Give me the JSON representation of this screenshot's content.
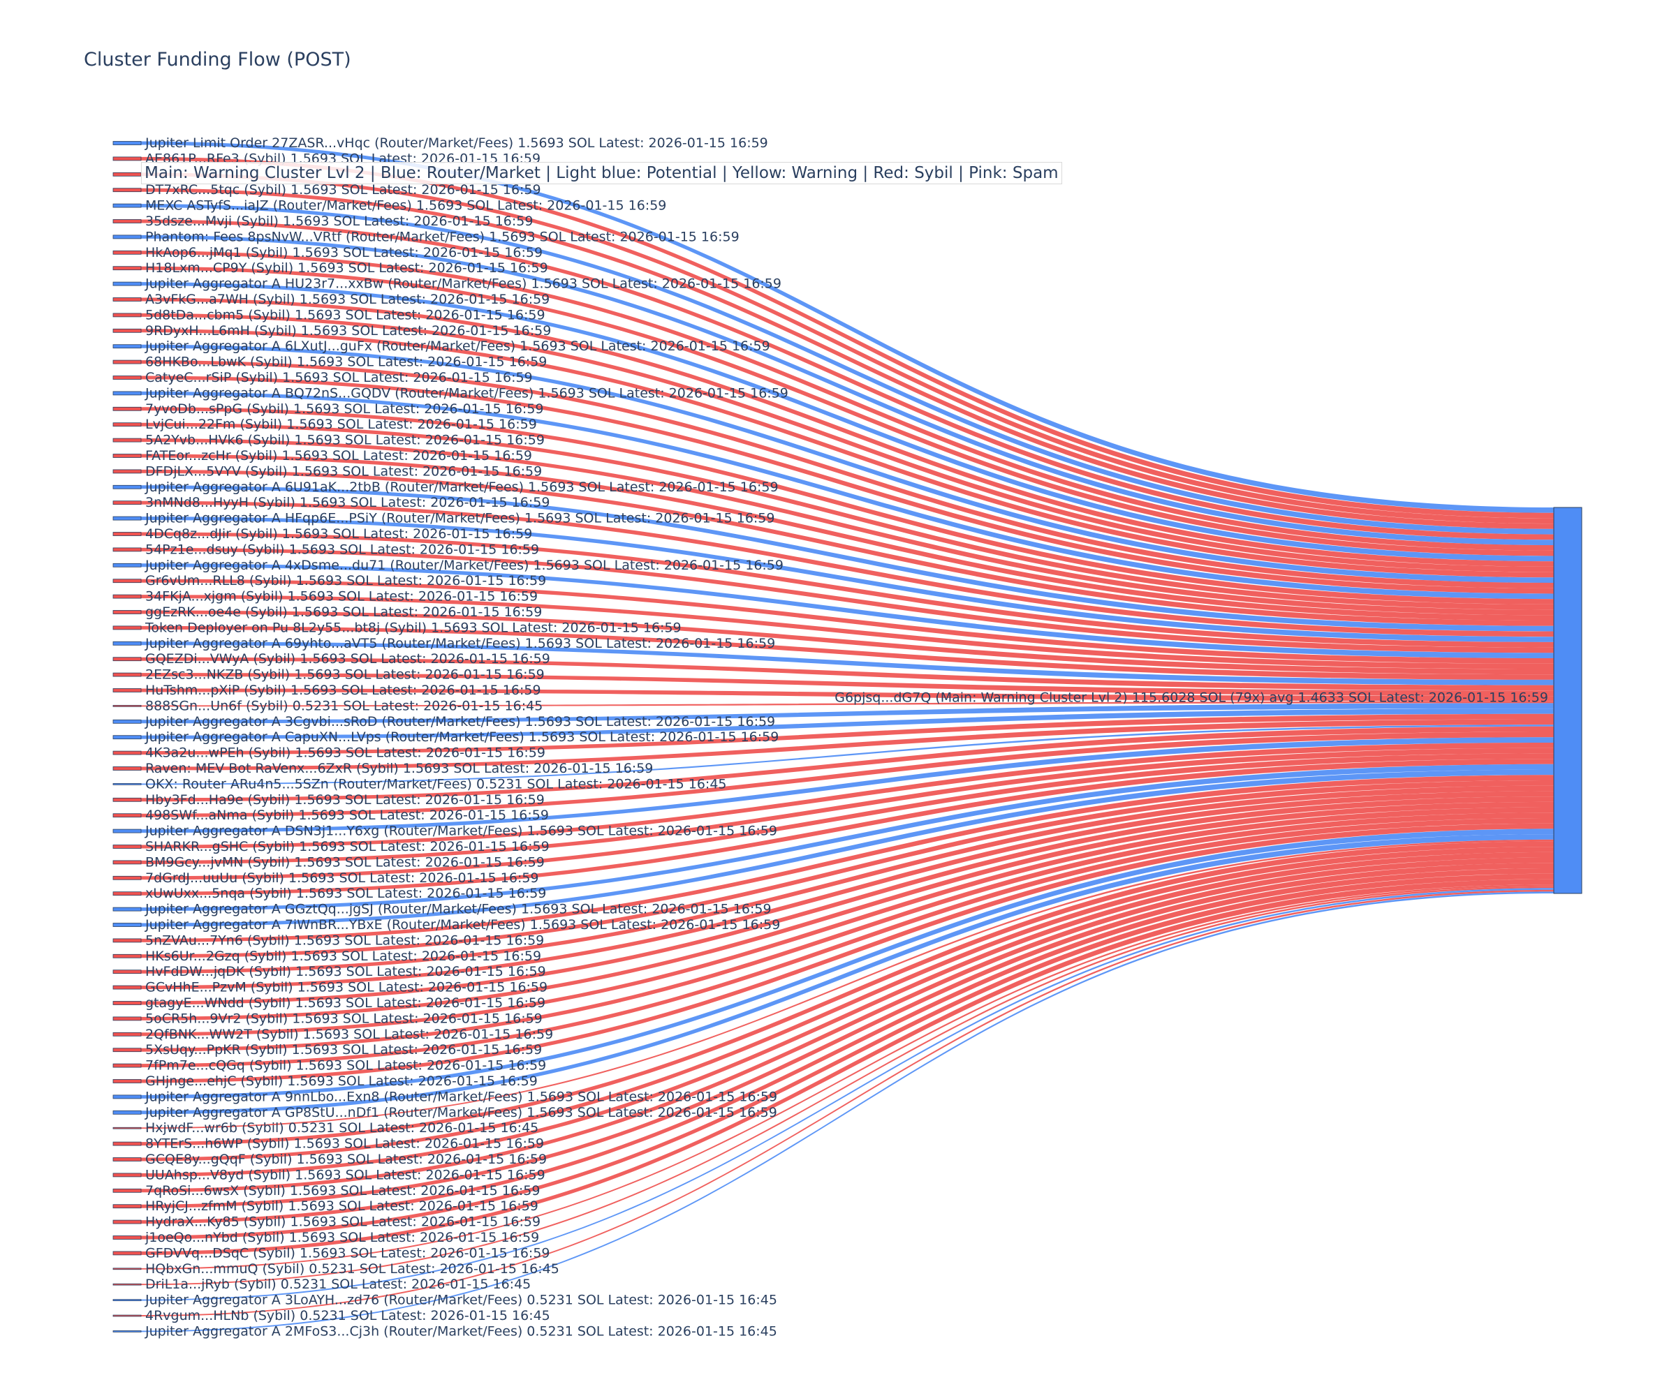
{
  "chart_data": {
    "type": "sankey",
    "title": "Cluster Funding Flow (POST)",
    "legend": "Main: Warning Cluster Lvl 2  |  Blue: Router/Market | Light blue: Potential | Yellow: Warning | Red: Sybil | Pink: Spam",
    "colors": {
      "router": "#4f8df5",
      "sybil": "#ef5350",
      "target": "#4f8df5"
    },
    "target": {
      "label": "G6pjsq...dG7Q (Main: Warning Cluster Lvl 2) 115.6028 SOL (79x) avg 1.4633 SOL Latest: 2026-01-15 16:59",
      "value": 115.6028
    },
    "sources": [
      {
        "label": "Jupiter Limit Order  27ZASR...vHqc (Router/Market/Fees) 1.5693 SOL Latest: 2026-01-15 16:59",
        "value": 1.5693,
        "kind": "router"
      },
      {
        "label": "AE861P...RFe3 (Sybil) 1.5693 SOL Latest: 2026-01-15 16:59",
        "value": 1.5693,
        "kind": "sybil"
      },
      {
        "label": "",
        "value": 1.5693,
        "kind": "sybil"
      },
      {
        "label": "DT7xRC...5tqc (Sybil) 1.5693 SOL Latest: 2026-01-15 16:59",
        "value": 1.5693,
        "kind": "sybil"
      },
      {
        "label": "MEXC ASTyfS...iaJZ (Router/Market/Fees) 1.5693 SOL Latest: 2026-01-15 16:59",
        "value": 1.5693,
        "kind": "router"
      },
      {
        "label": "35dsze...Mvji (Sybil) 1.5693 SOL Latest: 2026-01-15 16:59",
        "value": 1.5693,
        "kind": "sybil"
      },
      {
        "label": "Phantom: Fees 8psNvW...VRtf (Router/Market/Fees) 1.5693 SOL Latest: 2026-01-15 16:59",
        "value": 1.5693,
        "kind": "router"
      },
      {
        "label": "HkAop6...jMq1 (Sybil) 1.5693 SOL Latest: 2026-01-15 16:59",
        "value": 1.5693,
        "kind": "sybil"
      },
      {
        "label": "H18Lxm...CP9Y (Sybil) 1.5693 SOL Latest: 2026-01-15 16:59",
        "value": 1.5693,
        "kind": "sybil"
      },
      {
        "label": "Jupiter Aggregator A HU23r7...xxBw (Router/Market/Fees) 1.5693 SOL Latest: 2026-01-15 16:59",
        "value": 1.5693,
        "kind": "router"
      },
      {
        "label": "A3vFkG...a7WH (Sybil) 1.5693 SOL Latest: 2026-01-15 16:59",
        "value": 1.5693,
        "kind": "sybil"
      },
      {
        "label": "5d8tDa...cbm5 (Sybil) 1.5693 SOL Latest: 2026-01-15 16:59",
        "value": 1.5693,
        "kind": "sybil"
      },
      {
        "label": "9RDyxH...L6mH (Sybil) 1.5693 SOL Latest: 2026-01-15 16:59",
        "value": 1.5693,
        "kind": "sybil"
      },
      {
        "label": "Jupiter Aggregator A 6LXutJ...guFx (Router/Market/Fees) 1.5693 SOL Latest: 2026-01-15 16:59",
        "value": 1.5693,
        "kind": "router"
      },
      {
        "label": "68HKBo...LbwK (Sybil) 1.5693 SOL Latest: 2026-01-15 16:59",
        "value": 1.5693,
        "kind": "sybil"
      },
      {
        "label": "CatyeC...rSiP (Sybil) 1.5693 SOL Latest: 2026-01-15 16:59",
        "value": 1.5693,
        "kind": "sybil"
      },
      {
        "label": "Jupiter Aggregator A BQ72nS...GQDV (Router/Market/Fees) 1.5693 SOL Latest: 2026-01-15 16:59",
        "value": 1.5693,
        "kind": "router"
      },
      {
        "label": "7yvoDb...sPpG (Sybil) 1.5693 SOL Latest: 2026-01-15 16:59",
        "value": 1.5693,
        "kind": "sybil"
      },
      {
        "label": "LvjCui...22Fm (Sybil) 1.5693 SOL Latest: 2026-01-15 16:59",
        "value": 1.5693,
        "kind": "sybil"
      },
      {
        "label": "5A2Yvb...HVk6 (Sybil) 1.5693 SOL Latest: 2026-01-15 16:59",
        "value": 1.5693,
        "kind": "sybil"
      },
      {
        "label": "FATEor...zcHr (Sybil) 1.5693 SOL Latest: 2026-01-15 16:59",
        "value": 1.5693,
        "kind": "sybil"
      },
      {
        "label": "DFDjLX...5VYV (Sybil) 1.5693 SOL Latest: 2026-01-15 16:59",
        "value": 1.5693,
        "kind": "sybil"
      },
      {
        "label": "Jupiter Aggregator A 6U91aK...2tbB (Router/Market/Fees) 1.5693 SOL Latest: 2026-01-15 16:59",
        "value": 1.5693,
        "kind": "router"
      },
      {
        "label": "3nMNd8...HyyH (Sybil) 1.5693 SOL Latest: 2026-01-15 16:59",
        "value": 1.5693,
        "kind": "sybil"
      },
      {
        "label": "Jupiter Aggregator A HFqp6E...PSiY (Router/Market/Fees) 1.5693 SOL Latest: 2026-01-15 16:59",
        "value": 1.5693,
        "kind": "router"
      },
      {
        "label": "4DCq8z...dJir (Sybil) 1.5693 SOL Latest: 2026-01-15 16:59",
        "value": 1.5693,
        "kind": "sybil"
      },
      {
        "label": "54Pz1e...dsuy (Sybil) 1.5693 SOL Latest: 2026-01-15 16:59",
        "value": 1.5693,
        "kind": "sybil"
      },
      {
        "label": "Jupiter Aggregator A 4xDsme...du71 (Router/Market/Fees) 1.5693 SOL Latest: 2026-01-15 16:59",
        "value": 1.5693,
        "kind": "router"
      },
      {
        "label": "Gr6vUm...RLL8 (Sybil) 1.5693 SOL Latest: 2026-01-15 16:59",
        "value": 1.5693,
        "kind": "sybil"
      },
      {
        "label": "34FKjA...xjgm (Sybil) 1.5693 SOL Latest: 2026-01-15 16:59",
        "value": 1.5693,
        "kind": "sybil"
      },
      {
        "label": "ggEzRK...oe4e (Sybil) 1.5693 SOL Latest: 2026-01-15 16:59",
        "value": 1.5693,
        "kind": "sybil"
      },
      {
        "label": "Token Deployer on Pu 8L2y55...bt8j (Sybil) 1.5693 SOL Latest: 2026-01-15 16:59",
        "value": 1.5693,
        "kind": "sybil"
      },
      {
        "label": "Jupiter Aggregator A 69yhto...aVT5 (Router/Market/Fees) 1.5693 SOL Latest: 2026-01-15 16:59",
        "value": 1.5693,
        "kind": "router"
      },
      {
        "label": "GQEZDi...VWyA (Sybil) 1.5693 SOL Latest: 2026-01-15 16:59",
        "value": 1.5693,
        "kind": "sybil"
      },
      {
        "label": "2EZsc3...NKZB (Sybil) 1.5693 SOL Latest: 2026-01-15 16:59",
        "value": 1.5693,
        "kind": "sybil"
      },
      {
        "label": "HuTshm...pXiP (Sybil) 1.5693 SOL Latest: 2026-01-15 16:59",
        "value": 1.5693,
        "kind": "sybil"
      },
      {
        "label": "888SGn...Un6f (Sybil) 0.5231 SOL Latest: 2026-01-15 16:45",
        "value": 0.5231,
        "kind": "sybil"
      },
      {
        "label": "Jupiter Aggregator A 3Cgvbi...sRoD (Router/Market/Fees) 1.5693 SOL Latest: 2026-01-15 16:59",
        "value": 1.5693,
        "kind": "router"
      },
      {
        "label": "Jupiter Aggregator A CapuXN...LVps (Router/Market/Fees) 1.5693 SOL Latest: 2026-01-15 16:59",
        "value": 1.5693,
        "kind": "router"
      },
      {
        "label": "4K3a2u...wPEh (Sybil) 1.5693 SOL Latest: 2026-01-15 16:59",
        "value": 1.5693,
        "kind": "sybil"
      },
      {
        "label": "Raven: MEV Bot RaVenx...6ZxR (Sybil) 1.5693 SOL Latest: 2026-01-15 16:59",
        "value": 1.5693,
        "kind": "sybil"
      },
      {
        "label": "OKX: Router ARu4n5...5SZn (Router/Market/Fees) 0.5231 SOL Latest: 2026-01-15 16:45",
        "value": 0.5231,
        "kind": "router"
      },
      {
        "label": "Hby3Fd...Ha9e (Sybil) 1.5693 SOL Latest: 2026-01-15 16:59",
        "value": 1.5693,
        "kind": "sybil"
      },
      {
        "label": "498SWf...aNma (Sybil) 1.5693 SOL Latest: 2026-01-15 16:59",
        "value": 1.5693,
        "kind": "sybil"
      },
      {
        "label": "Jupiter Aggregator A DSN3j1...Y6xg (Router/Market/Fees) 1.5693 SOL Latest: 2026-01-15 16:59",
        "value": 1.5693,
        "kind": "router"
      },
      {
        "label": "SHARKR...gSHC (Sybil) 1.5693 SOL Latest: 2026-01-15 16:59",
        "value": 1.5693,
        "kind": "sybil"
      },
      {
        "label": "BM9Gcy...jvMN (Sybil) 1.5693 SOL Latest: 2026-01-15 16:59",
        "value": 1.5693,
        "kind": "sybil"
      },
      {
        "label": "7dGrdJ...uuUu (Sybil) 1.5693 SOL Latest: 2026-01-15 16:59",
        "value": 1.5693,
        "kind": "sybil"
      },
      {
        "label": "xUwUxx...5nqa (Sybil) 1.5693 SOL Latest: 2026-01-15 16:59",
        "value": 1.5693,
        "kind": "sybil"
      },
      {
        "label": "Jupiter Aggregator A GGztQq...jgSJ (Router/Market/Fees) 1.5693 SOL Latest: 2026-01-15 16:59",
        "value": 1.5693,
        "kind": "router"
      },
      {
        "label": "Jupiter Aggregator A 7iWnBR...YBxE (Router/Market/Fees) 1.5693 SOL Latest: 2026-01-15 16:59",
        "value": 1.5693,
        "kind": "router"
      },
      {
        "label": "5nZVAu...7Yn6 (Sybil) 1.5693 SOL Latest: 2026-01-15 16:59",
        "value": 1.5693,
        "kind": "sybil"
      },
      {
        "label": "HKs6Ur...2Gzq (Sybil) 1.5693 SOL Latest: 2026-01-15 16:59",
        "value": 1.5693,
        "kind": "sybil"
      },
      {
        "label": "HvFdDW...jqDK (Sybil) 1.5693 SOL Latest: 2026-01-15 16:59",
        "value": 1.5693,
        "kind": "sybil"
      },
      {
        "label": "GCvHhE...PzvM (Sybil) 1.5693 SOL Latest: 2026-01-15 16:59",
        "value": 1.5693,
        "kind": "sybil"
      },
      {
        "label": "gtagyE...WNdd (Sybil) 1.5693 SOL Latest: 2026-01-15 16:59",
        "value": 1.5693,
        "kind": "sybil"
      },
      {
        "label": "5oCR5h...9Vr2 (Sybil) 1.5693 SOL Latest: 2026-01-15 16:59",
        "value": 1.5693,
        "kind": "sybil"
      },
      {
        "label": "2QfBNK...WW2T (Sybil) 1.5693 SOL Latest: 2026-01-15 16:59",
        "value": 1.5693,
        "kind": "sybil"
      },
      {
        "label": "5XsUqy...PpKR (Sybil) 1.5693 SOL Latest: 2026-01-15 16:59",
        "value": 1.5693,
        "kind": "sybil"
      },
      {
        "label": "7fPm7e...cQGq (Sybil) 1.5693 SOL Latest: 2026-01-15 16:59",
        "value": 1.5693,
        "kind": "sybil"
      },
      {
        "label": "GHjnge...ehjC (Sybil) 1.5693 SOL Latest: 2026-01-15 16:59",
        "value": 1.5693,
        "kind": "sybil"
      },
      {
        "label": "Jupiter Aggregator A 9nnLbo...Exn8 (Router/Market/Fees) 1.5693 SOL Latest: 2026-01-15 16:59",
        "value": 1.5693,
        "kind": "router"
      },
      {
        "label": "Jupiter Aggregator A GP8StU...nDf1 (Router/Market/Fees) 1.5693 SOL Latest: 2026-01-15 16:59",
        "value": 1.5693,
        "kind": "router"
      },
      {
        "label": "HxjwdF...wr6b (Sybil) 0.5231 SOL Latest: 2026-01-15 16:45",
        "value": 0.5231,
        "kind": "sybil"
      },
      {
        "label": "8YTErS...h6WP (Sybil) 1.5693 SOL Latest: 2026-01-15 16:59",
        "value": 1.5693,
        "kind": "sybil"
      },
      {
        "label": "GCQE8y...gQqF (Sybil) 1.5693 SOL Latest: 2026-01-15 16:59",
        "value": 1.5693,
        "kind": "sybil"
      },
      {
        "label": "UUAhsp...V8yd (Sybil) 1.5693 SOL Latest: 2026-01-15 16:59",
        "value": 1.5693,
        "kind": "sybil"
      },
      {
        "label": "7qRoSi...6wsX (Sybil) 1.5693 SOL Latest: 2026-01-15 16:59",
        "value": 1.5693,
        "kind": "sybil"
      },
      {
        "label": "HRyjCJ...zfmM (Sybil) 1.5693 SOL Latest: 2026-01-15 16:59",
        "value": 1.5693,
        "kind": "sybil"
      },
      {
        "label": "HydraX...Ky85 (Sybil) 1.5693 SOL Latest: 2026-01-15 16:59",
        "value": 1.5693,
        "kind": "sybil"
      },
      {
        "label": "j1oeQo...nYbd (Sybil) 1.5693 SOL Latest: 2026-01-15 16:59",
        "value": 1.5693,
        "kind": "sybil"
      },
      {
        "label": "GFDVVq...DSqC (Sybil) 1.5693 SOL Latest: 2026-01-15 16:59",
        "value": 1.5693,
        "kind": "sybil"
      },
      {
        "label": "HQbxGn...mmuQ (Sybil) 0.5231 SOL Latest: 2026-01-15 16:45",
        "value": 0.5231,
        "kind": "sybil"
      },
      {
        "label": "DriL1a...jRyb (Sybil) 0.5231 SOL Latest: 2026-01-15 16:45",
        "value": 0.5231,
        "kind": "sybil"
      },
      {
        "label": "Jupiter Aggregator A 3LoAYH...zd76 (Router/Market/Fees) 0.5231 SOL Latest: 2026-01-15 16:45",
        "value": 0.5231,
        "kind": "router"
      },
      {
        "label": "4Rvgum...HLNb (Sybil) 0.5231 SOL Latest: 2026-01-15 16:45",
        "value": 0.5231,
        "kind": "sybil"
      },
      {
        "label": "Jupiter Aggregator A 2MFoS3...Cj3h (Router/Market/Fees) 0.5231 SOL Latest: 2026-01-15 16:45",
        "value": 0.5231,
        "kind": "router"
      }
    ]
  }
}
